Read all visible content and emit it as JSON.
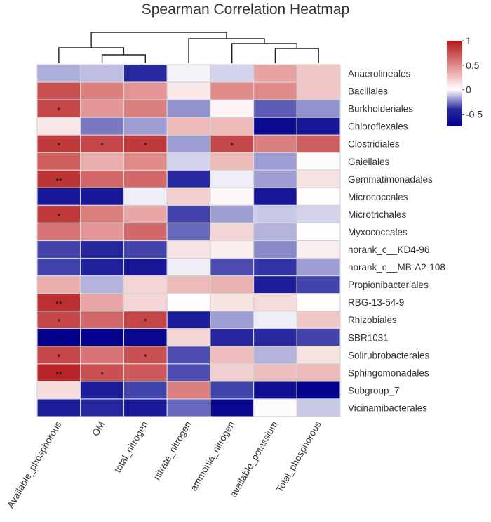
{
  "chart_data": {
    "type": "heatmap",
    "title": "Spearman Correlation Heatmap",
    "xlabel": "",
    "ylabel": "",
    "columns": [
      "Available_phosphorous",
      "OM",
      "total_nitrogen",
      "nitrate_nitrogen",
      "ammonia_nitrogen",
      "available_potassium",
      "Total_phosphorous"
    ],
    "rows": [
      "Anaerolineales",
      "Bacillales",
      "Burkholderiales",
      "Chloroflexales",
      "Clostridiales",
      "Gaiellales",
      "Gemmatimonadales",
      "Micrococcales",
      "Microtrichales",
      "Myxococcales",
      "norank_c__KD4-96",
      "norank_c__MB-A2-108",
      "Propionibacteriales",
      "RBG-13-54-9",
      "Rhizobiales",
      "SBR1031",
      "Solirubrobacterales",
      "Sphingomonadales",
      "Subgroup_7",
      "Vicinamibacterales"
    ],
    "values": [
      [
        -0.15,
        -0.12,
        -0.4,
        -0.02,
        -0.08,
        0.4,
        0.25
      ],
      [
        0.75,
        0.55,
        0.45,
        0.1,
        0.5,
        0.5,
        0.25
      ],
      [
        0.8,
        0.45,
        0.55,
        -0.2,
        0.05,
        -0.3,
        -0.2
      ],
      [
        0.1,
        -0.25,
        -0.18,
        0.3,
        0.3,
        -0.65,
        -0.55
      ],
      [
        0.85,
        0.8,
        0.85,
        -0.18,
        0.8,
        0.55,
        0.7
      ],
      [
        0.7,
        0.35,
        0.5,
        -0.08,
        0.3,
        -0.18,
        0.02
      ],
      [
        0.88,
        0.65,
        0.65,
        -0.4,
        -0.03,
        -0.18,
        0.12
      ],
      [
        -0.55,
        -0.55,
        -0.03,
        0.2,
        0.03,
        -0.55,
        0.01
      ],
      [
        0.85,
        0.55,
        0.38,
        -0.35,
        -0.18,
        -0.1,
        -0.08
      ],
      [
        0.6,
        0.45,
        0.65,
        -0.28,
        0.18,
        -0.14,
        0.01
      ],
      [
        -0.35,
        -0.42,
        -0.35,
        0.12,
        0.08,
        -0.22,
        0.08
      ],
      [
        -0.35,
        -0.45,
        -0.55,
        -0.03,
        -0.33,
        -0.38,
        -0.18
      ],
      [
        0.35,
        -0.14,
        0.18,
        0.3,
        0.33,
        -0.5,
        -0.35
      ],
      [
        0.9,
        0.38,
        0.18,
        0.01,
        0.12,
        0.15,
        0.01
      ],
      [
        0.8,
        0.65,
        0.8,
        -0.5,
        -0.18,
        -0.03,
        0.25
      ],
      [
        -0.75,
        -0.72,
        -0.68,
        0.18,
        -0.43,
        -0.4,
        -0.35
      ],
      [
        0.8,
        0.6,
        0.75,
        -0.33,
        0.28,
        -0.14,
        0.12
      ],
      [
        0.95,
        0.75,
        0.72,
        -0.33,
        0.2,
        0.28,
        0.3
      ],
      [
        0.15,
        -0.5,
        -0.35,
        0.55,
        -0.35,
        -0.62,
        -0.72
      ],
      [
        -0.5,
        -0.4,
        -0.52,
        -0.28,
        -0.68,
        0.02,
        -0.1
      ]
    ],
    "significance": [
      [
        "",
        "",
        "",
        "",
        "",
        "",
        ""
      ],
      [
        "",
        "",
        "",
        "",
        "",
        "",
        ""
      ],
      [
        "*",
        "",
        "",
        "",
        "",
        "",
        ""
      ],
      [
        "",
        "",
        "",
        "",
        "",
        "",
        ""
      ],
      [
        "*",
        "*",
        "*",
        "",
        "*",
        "",
        ""
      ],
      [
        "",
        "",
        "",
        "",
        "",
        "",
        ""
      ],
      [
        "**",
        "",
        "",
        "",
        "",
        "",
        ""
      ],
      [
        "",
        "",
        "",
        "",
        "",
        "",
        ""
      ],
      [
        "*",
        "",
        "",
        "",
        "",
        "",
        ""
      ],
      [
        "",
        "",
        "",
        "",
        "",
        "",
        ""
      ],
      [
        "",
        "",
        "",
        "",
        "",
        "",
        ""
      ],
      [
        "",
        "",
        "",
        "",
        "",
        "",
        ""
      ],
      [
        "",
        "",
        "",
        "",
        "",
        "",
        ""
      ],
      [
        "**",
        "",
        "",
        "",
        "",
        "",
        ""
      ],
      [
        "*",
        "",
        "*",
        "",
        "",
        "",
        ""
      ],
      [
        "*",
        "",
        "",
        "",
        "",
        "",
        ""
      ],
      [
        "*",
        "",
        "*",
        "",
        "",
        "",
        ""
      ],
      [
        "**",
        "*",
        "",
        "",
        "",
        "",
        ""
      ],
      [
        "",
        "",
        "",
        "",
        "",
        "",
        ""
      ],
      [
        "",
        "",
        "",
        "",
        "",
        "",
        ""
      ]
    ],
    "colorbar": {
      "range": [
        -0.75,
        1
      ],
      "ticks": [
        1,
        0.5,
        0,
        -0.5
      ],
      "tick_labels": [
        "1",
        "0.5",
        "0",
        "-0.5"
      ],
      "low_color": "#00008b",
      "mid_color": "#ffffff",
      "high_color": "#b2182b",
      "placement": "top-right"
    },
    "column_dendrogram": {
      "merges": [
        {
          "left": "OM",
          "right": "total_nitrogen",
          "height": 1
        },
        {
          "left": "available_potassium",
          "right": "Total_phosphorous",
          "height": 1
        },
        {
          "left": "Available_phosphorous",
          "right": "OM+total_nitrogen",
          "height": 2
        },
        {
          "left": "ammonia_nitrogen",
          "right": "available_potassium+Total_phosphorous",
          "height": 2
        },
        {
          "left": "nitrate_nitrogen",
          "right": "ammonia_nitrogen+available_potassium+Total_phosphorous",
          "height": 3
        },
        {
          "left": "Available_phosphorous+OM+total_nitrogen",
          "right": "nitrate_nitrogen+ammonia_nitrogen+available_potassium+Total_phosphorous",
          "height": 4
        }
      ]
    }
  }
}
